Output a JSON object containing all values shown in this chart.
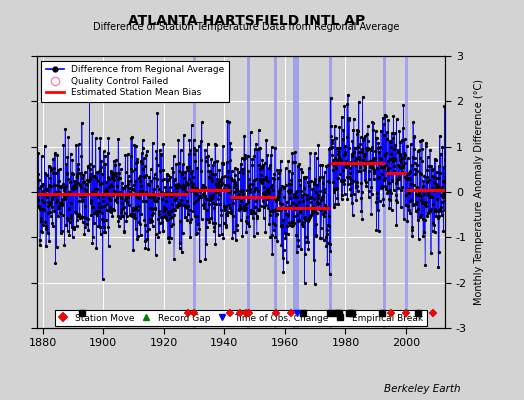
{
  "title": "ATLANTA HARTSFIELD INTL AP",
  "subtitle": "Difference of Station Temperature Data from Regional Average",
  "ylabel": "Monthly Temperature Anomaly Difference (°C)",
  "credit": "Berkeley Earth",
  "xlim": [
    1878,
    2013
  ],
  "ylim": [
    -3,
    3
  ],
  "yticks": [
    -3,
    -2,
    -1,
    0,
    1,
    2,
    3
  ],
  "xticks": [
    1880,
    1900,
    1920,
    1940,
    1960,
    1980,
    2000
  ],
  "bg_color": "#d3d3d3",
  "plot_bg_color": "#d3d3d3",
  "grid_color": "#ffffff",
  "seed": 42,
  "station_moves": [
    1928,
    1930,
    1942,
    1945,
    1947,
    1948,
    1957,
    1962,
    1995,
    2000,
    2009
  ],
  "empirical_breaks": [
    1893,
    1966,
    1975,
    1977,
    1978,
    1981,
    1982,
    1992,
    2004
  ],
  "obs_changes": [
    1964
  ],
  "blue_vlines": [
    1930,
    1948,
    1957,
    1963,
    1964,
    1975,
    1993,
    2000
  ],
  "bias_segments": [
    {
      "x": [
        1878,
        1928
      ],
      "y": [
        -0.05,
        -0.05
      ]
    },
    {
      "x": [
        1928,
        1942
      ],
      "y": [
        0.05,
        0.05
      ]
    },
    {
      "x": [
        1942,
        1957
      ],
      "y": [
        -0.1,
        -0.1
      ]
    },
    {
      "x": [
        1957,
        1963
      ],
      "y": [
        -0.35,
        -0.35
      ]
    },
    {
      "x": [
        1963,
        1975
      ],
      "y": [
        -0.35,
        -0.35
      ]
    },
    {
      "x": [
        1975,
        1993
      ],
      "y": [
        0.65,
        0.65
      ]
    },
    {
      "x": [
        1993,
        2000
      ],
      "y": [
        0.42,
        0.42
      ]
    },
    {
      "x": [
        2000,
        2013
      ],
      "y": [
        0.05,
        0.05
      ]
    }
  ],
  "noise_scale": 0.58,
  "marker_y": -2.68
}
